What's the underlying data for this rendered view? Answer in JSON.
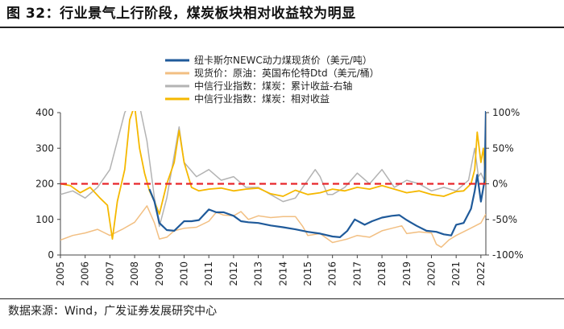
{
  "header": {
    "title": "图 32：行业景气上行阶段，煤炭板块相对收益较为明显"
  },
  "footer": {
    "source": "数据来源：Wind，广发证券发展研究中心"
  },
  "chart_data": {
    "type": "line",
    "title": "",
    "x_ticks": [
      "2005",
      "2006",
      "2007",
      "2008",
      "2009",
      "2010",
      "2011",
      "2012",
      "2013",
      "2014",
      "2015",
      "2016",
      "2017",
      "2018",
      "2019",
      "2020",
      "2021",
      "2022"
    ],
    "y_left": {
      "min": 0,
      "max": 400,
      "ticks": [
        "0",
        "100",
        "200",
        "300",
        "400"
      ]
    },
    "y_right": {
      "min": -100,
      "max": 100,
      "ticks": [
        "-100%",
        "-50%",
        "0%",
        "50%",
        "100%"
      ]
    },
    "grid": false,
    "legend_position": "top-center",
    "reference_line": {
      "axis": "right",
      "value": 0,
      "color": "#e8262a",
      "style": "dashed"
    },
    "series": [
      {
        "name": "纽卡斯尔NEWC动力煤现货价（美元/吨）",
        "axis": "left",
        "color": "#1f5a9a",
        "width": 2.2,
        "x": [
          2008.6,
          2008.8,
          2009.0,
          2009.3,
          2009.6,
          2010.0,
          2010.3,
          2010.6,
          2011.0,
          2011.3,
          2011.6,
          2012.0,
          2012.3,
          2012.6,
          2013.0,
          2013.5,
          2014.0,
          2014.5,
          2015.0,
          2015.5,
          2016.0,
          2016.3,
          2016.6,
          2016.9,
          2017.3,
          2017.6,
          2018.0,
          2018.4,
          2018.7,
          2019.0,
          2019.4,
          2019.8,
          2020.2,
          2020.5,
          2020.8,
          2021.0,
          2021.3,
          2021.6,
          2021.75,
          2021.85,
          2022.0,
          2022.15,
          2022.2
        ],
        "y": [
          185,
          150,
          90,
          70,
          68,
          95,
          95,
          98,
          128,
          120,
          120,
          110,
          95,
          92,
          90,
          83,
          78,
          72,
          65,
          60,
          52,
          50,
          68,
          100,
          85,
          95,
          105,
          110,
          112,
          98,
          82,
          68,
          65,
          58,
          55,
          85,
          90,
          130,
          180,
          225,
          150,
          210,
          405
        ]
      },
      {
        "name": "现货价：原油：英国布伦特Dtd（美元/桶）",
        "axis": "left",
        "color": "#f2bf82",
        "width": 1.5,
        "x": [
          2005.0,
          2005.5,
          2006.0,
          2006.5,
          2007.0,
          2007.5,
          2008.0,
          2008.5,
          2008.8,
          2009.0,
          2009.3,
          2009.6,
          2010.0,
          2010.5,
          2011.0,
          2011.3,
          2011.6,
          2012.0,
          2012.3,
          2012.6,
          2013.0,
          2013.5,
          2014.0,
          2014.5,
          2014.8,
          2015.0,
          2015.5,
          2016.0,
          2016.3,
          2016.6,
          2017.0,
          2017.5,
          2018.0,
          2018.4,
          2018.8,
          2019.0,
          2019.5,
          2020.0,
          2020.2,
          2020.4,
          2020.7,
          2021.0,
          2021.5,
          2022.0,
          2022.2
        ],
        "y": [
          42,
          55,
          62,
          72,
          55,
          72,
          92,
          138,
          90,
          45,
          50,
          68,
          75,
          78,
          95,
          120,
          112,
          110,
          122,
          100,
          110,
          105,
          108,
          108,
          80,
          55,
          60,
          35,
          40,
          45,
          55,
          50,
          68,
          75,
          82,
          60,
          65,
          62,
          30,
          22,
          42,
          55,
          72,
          90,
          115
        ]
      },
      {
        "name": "中信行业指数：煤炭：累计收益-右轴",
        "axis": "right",
        "color": "#b3b3b3",
        "width": 1.5,
        "x": [
          2005.0,
          2005.5,
          2006.0,
          2006.5,
          2007.0,
          2007.3,
          2007.6,
          2007.9,
          2008.2,
          2008.5,
          2008.8,
          2009.0,
          2009.3,
          2009.6,
          2009.8,
          2010.0,
          2010.5,
          2011.0,
          2011.5,
          2012.0,
          2012.5,
          2013.0,
          2013.5,
          2014.0,
          2014.5,
          2014.8,
          2015.0,
          2015.3,
          2015.5,
          2015.8,
          2016.0,
          2016.5,
          2017.0,
          2017.5,
          2018.0,
          2018.5,
          2019.0,
          2019.5,
          2020.0,
          2020.5,
          2021.0,
          2021.5,
          2021.75,
          2021.9,
          2022.0,
          2022.2
        ],
        "y": [
          -15,
          -10,
          -20,
          -5,
          20,
          60,
          100,
          120,
          110,
          60,
          -20,
          -60,
          -20,
          40,
          80,
          30,
          10,
          20,
          5,
          10,
          -5,
          -5,
          -15,
          -25,
          -20,
          -5,
          5,
          20,
          10,
          -15,
          -15,
          -5,
          15,
          0,
          20,
          -5,
          5,
          0,
          -10,
          -5,
          -10,
          5,
          50,
          10,
          15,
          0
        ]
      },
      {
        "name": "中信行业指数：煤炭：相对收益",
        "axis": "left",
        "color": "#f5b800",
        "width": 1.8,
        "x": [
          2005.0,
          2005.4,
          2005.8,
          2006.2,
          2006.6,
          2006.9,
          2007.1,
          2007.3,
          2007.6,
          2007.8,
          2008.0,
          2008.2,
          2008.4,
          2008.6,
          2008.8,
          2009.0,
          2009.3,
          2009.6,
          2009.8,
          2010.0,
          2010.3,
          2010.6,
          2011.0,
          2011.5,
          2012.0,
          2012.5,
          2013.0,
          2013.5,
          2014.0,
          2014.5,
          2015.0,
          2015.5,
          2016.0,
          2016.5,
          2017.0,
          2017.5,
          2018.0,
          2018.5,
          2019.0,
          2019.5,
          2020.0,
          2020.5,
          2021.0,
          2021.3,
          2021.6,
          2021.75,
          2021.85,
          2022.0,
          2022.1,
          2022.2
        ],
        "y": [
          200,
          195,
          175,
          190,
          160,
          140,
          45,
          150,
          240,
          380,
          420,
          300,
          230,
          180,
          150,
          115,
          200,
          260,
          350,
          260,
          190,
          180,
          185,
          188,
          180,
          185,
          188,
          172,
          165,
          182,
          170,
          175,
          185,
          180,
          190,
          185,
          195,
          185,
          175,
          180,
          170,
          165,
          178,
          180,
          200,
          240,
          345,
          260,
          300,
          200
        ]
      }
    ]
  }
}
